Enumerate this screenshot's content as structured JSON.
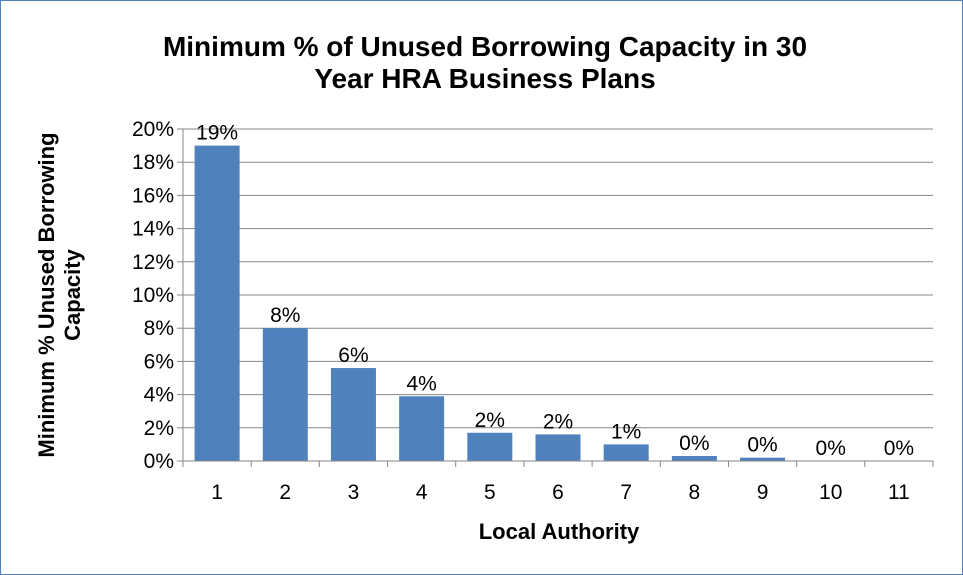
{
  "chart_data": {
    "type": "bar",
    "title_lines": [
      "Minimum % of Unused Borrowing Capacity in 30",
      "Year HRA Business Plans"
    ],
    "xlabel": "Local Authority",
    "ylabel_lines": [
      "Minimum % Unused Borrowing",
      "Capacity"
    ],
    "categories": [
      "1",
      "2",
      "3",
      "4",
      "5",
      "6",
      "7",
      "8",
      "9",
      "10",
      "11"
    ],
    "values": [
      19.0,
      8.0,
      5.6,
      3.9,
      1.7,
      1.6,
      1.0,
      0.3,
      0.2,
      0.0,
      0.0
    ],
    "data_labels": [
      "19%",
      "8%",
      "6%",
      "4%",
      "2%",
      "2%",
      "1%",
      "0%",
      "0%",
      "0%",
      "0%"
    ],
    "ylim": [
      0,
      20
    ],
    "yticks": [
      0,
      2,
      4,
      6,
      8,
      10,
      12,
      14,
      16,
      18,
      20
    ],
    "ytick_labels": [
      "0%",
      "2%",
      "4%",
      "6%",
      "8%",
      "10%",
      "12%",
      "14%",
      "16%",
      "18%",
      "20%"
    ],
    "grid": true,
    "legend": "none",
    "colors": {
      "bar": "#4f81bd",
      "gridline": "#868686",
      "axis": "#868686",
      "frame": "#4f81bd"
    }
  }
}
